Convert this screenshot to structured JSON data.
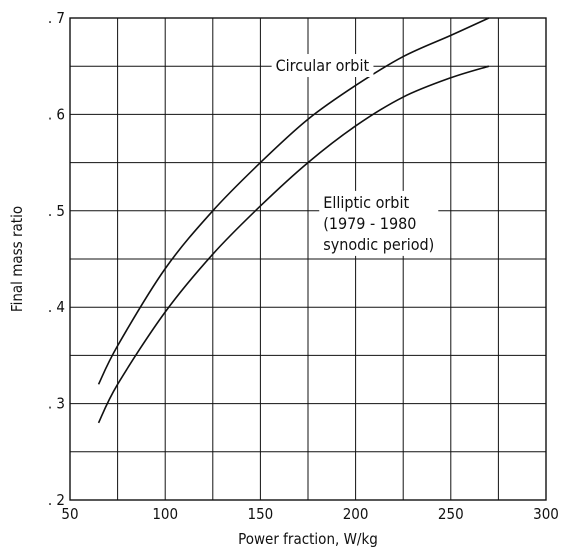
{
  "chart_data": {
    "type": "line",
    "title": "",
    "xlabel": "Power fraction, W/kg",
    "ylabel": "Final mass ratio",
    "xlim": [
      50,
      300
    ],
    "ylim": [
      0.2,
      0.7
    ],
    "x_ticks": [
      50,
      100,
      150,
      200,
      250,
      300
    ],
    "x_tick_labels": [
      "50",
      "100",
      "150",
      "200",
      "250",
      "300"
    ],
    "y_ticks": [
      0.2,
      0.3,
      0.4,
      0.5,
      0.6,
      0.7
    ],
    "y_tick_labels": [
      ". 2",
      ". 3",
      ". 4",
      ". 5",
      ". 6",
      ". 7"
    ],
    "grid": true,
    "grid_x_step": 25,
    "grid_y_step": 0.05,
    "series": [
      {
        "x": [
          65,
          75,
          100,
          125,
          150,
          175,
          200,
          225,
          250,
          270
        ],
        "y": [
          0.32,
          0.36,
          0.44,
          0.5,
          0.55,
          0.595,
          0.63,
          0.66,
          0.682,
          0.7
        ]
      },
      {
        "x": [
          65,
          75,
          100,
          125,
          150,
          175,
          200,
          225,
          250,
          270
        ],
        "y": [
          0.28,
          0.32,
          0.395,
          0.455,
          0.505,
          0.55,
          0.588,
          0.618,
          0.638,
          0.65
        ]
      }
    ],
    "annotations": [
      {
        "lines": [
          "Circular orbit"
        ],
        "x": 158,
        "y": 0.645,
        "anchor": "start"
      },
      {
        "lines": [
          "Elliptic orbit",
          "(1979 - 1980",
          " synodic period)"
        ],
        "x": 183,
        "y": 0.503,
        "anchor": "start"
      }
    ]
  }
}
